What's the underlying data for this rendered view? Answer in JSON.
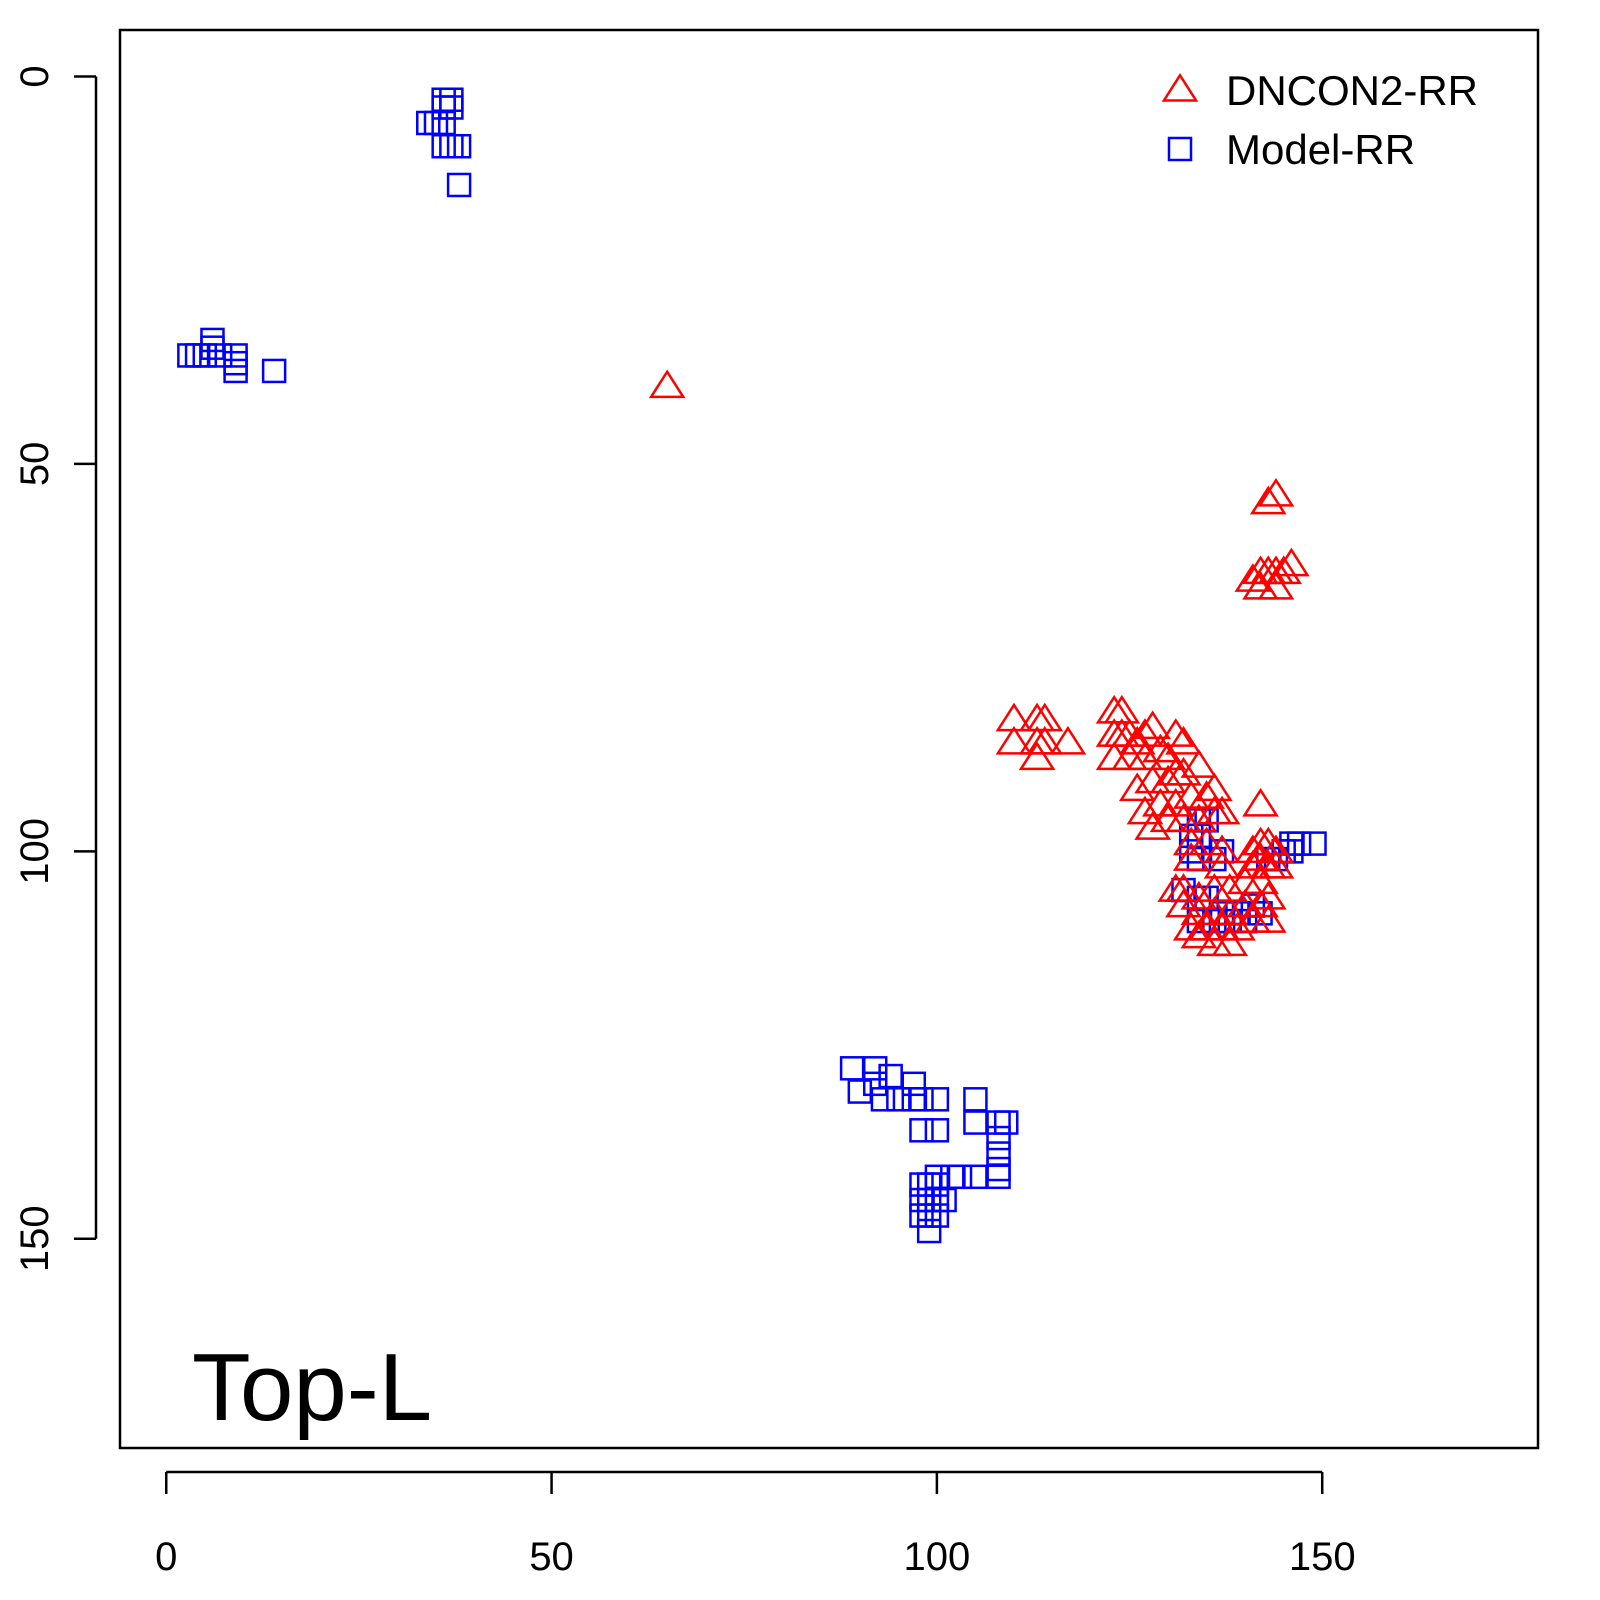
{
  "chart_data": {
    "type": "scatter",
    "panel_label": "Top-L",
    "title": "",
    "xlabel": "",
    "ylabel": "",
    "xlim": [
      -6,
      178
    ],
    "ylim": [
      177,
      -6
    ],
    "y_axis_reversed": true,
    "x_ticks": [
      0,
      50,
      100,
      150
    ],
    "y_ticks": [
      0,
      50,
      100,
      150
    ],
    "grid": false,
    "legend_position": "top-right",
    "series": [
      {
        "name": "DNCON2-RR",
        "marker": "triangle",
        "color": "#ff0000",
        "points": [
          [
            65,
            40
          ],
          [
            143,
            55
          ],
          [
            144,
            54
          ],
          [
            141,
            65
          ],
          [
            142,
            64
          ],
          [
            143,
            64
          ],
          [
            144,
            64
          ],
          [
            145,
            64
          ],
          [
            146,
            63
          ],
          [
            142,
            66
          ],
          [
            144,
            66
          ],
          [
            110,
            83
          ],
          [
            113,
            83
          ],
          [
            114,
            83
          ],
          [
            110,
            86
          ],
          [
            113,
            86
          ],
          [
            114,
            86
          ],
          [
            113,
            88
          ],
          [
            117,
            86
          ],
          [
            123,
            82
          ],
          [
            124,
            82
          ],
          [
            123,
            85
          ],
          [
            124,
            85
          ],
          [
            125,
            85
          ],
          [
            126,
            86
          ],
          [
            127,
            85
          ],
          [
            128,
            84
          ],
          [
            123,
            88
          ],
          [
            125,
            88
          ],
          [
            127,
            88
          ],
          [
            129,
            87
          ],
          [
            131,
            85
          ],
          [
            132,
            86
          ],
          [
            130,
            88
          ],
          [
            126,
            92
          ],
          [
            128,
            91
          ],
          [
            130,
            91
          ],
          [
            131,
            90
          ],
          [
            132,
            90
          ],
          [
            134,
            89
          ],
          [
            127,
            95
          ],
          [
            129,
            94
          ],
          [
            131,
            94
          ],
          [
            133,
            93
          ],
          [
            135,
            93
          ],
          [
            136,
            92
          ],
          [
            128,
            97
          ],
          [
            130,
            96
          ],
          [
            132,
            96
          ],
          [
            134,
            96
          ],
          [
            136,
            95
          ],
          [
            137,
            95
          ],
          [
            133,
            99
          ],
          [
            135,
            99
          ],
          [
            137,
            100
          ],
          [
            142,
            94
          ],
          [
            133,
            101
          ],
          [
            137,
            102
          ],
          [
            131,
            105
          ],
          [
            132,
            105
          ],
          [
            134,
            106
          ],
          [
            136,
            105
          ],
          [
            138,
            105
          ],
          [
            140,
            104
          ],
          [
            142,
            104
          ],
          [
            132,
            107
          ],
          [
            134,
            108
          ],
          [
            136,
            108
          ],
          [
            138,
            108
          ],
          [
            140,
            107
          ],
          [
            142,
            107
          ],
          [
            143,
            106
          ],
          [
            133,
            110
          ],
          [
            135,
            110
          ],
          [
            137,
            110
          ],
          [
            139,
            110
          ],
          [
            141,
            109
          ],
          [
            143,
            109
          ],
          [
            134,
            111
          ],
          [
            136,
            112
          ],
          [
            138,
            112
          ],
          [
            141,
            100
          ],
          [
            142,
            99
          ],
          [
            143,
            99
          ],
          [
            144,
            100
          ],
          [
            141,
            102
          ],
          [
            143,
            102
          ],
          [
            144,
            102
          ],
          [
            142,
            101
          ]
        ]
      },
      {
        "name": "Model-RR",
        "marker": "square",
        "color": "#0000ff",
        "points": [
          [
            36,
            3
          ],
          [
            37,
            3
          ],
          [
            36,
            4
          ],
          [
            37,
            4
          ],
          [
            34,
            6
          ],
          [
            35,
            6
          ],
          [
            36,
            6
          ],
          [
            36,
            9
          ],
          [
            37,
            9
          ],
          [
            38,
            9
          ],
          [
            38,
            14
          ],
          [
            3,
            36
          ],
          [
            4,
            36
          ],
          [
            5,
            36
          ],
          [
            6,
            35
          ],
          [
            6,
            34
          ],
          [
            7,
            36
          ],
          [
            9,
            36
          ],
          [
            9,
            37
          ],
          [
            9,
            38
          ],
          [
            14,
            38
          ],
          [
            134,
            96
          ],
          [
            135,
            96
          ],
          [
            133,
            98
          ],
          [
            134,
            98
          ],
          [
            133,
            100
          ],
          [
            134,
            101
          ],
          [
            136,
            101
          ],
          [
            137,
            100
          ],
          [
            132,
            105
          ],
          [
            134,
            106
          ],
          [
            135,
            106
          ],
          [
            137,
            108
          ],
          [
            139,
            108
          ],
          [
            141,
            107
          ],
          [
            142,
            108
          ],
          [
            134,
            109
          ],
          [
            136,
            109
          ],
          [
            138,
            109
          ],
          [
            140,
            109
          ],
          [
            143,
            101
          ],
          [
            144,
            101
          ],
          [
            145,
            100
          ],
          [
            146,
            99
          ],
          [
            147,
            99
          ],
          [
            149,
            99
          ],
          [
            146,
            100
          ],
          [
            89,
            128
          ],
          [
            90,
            131
          ],
          [
            92,
            128
          ],
          [
            92,
            130
          ],
          [
            93,
            132
          ],
          [
            94,
            129
          ],
          [
            95,
            132
          ],
          [
            97,
            130
          ],
          [
            97,
            132
          ],
          [
            98,
            132
          ],
          [
            100,
            132
          ],
          [
            98,
            136
          ],
          [
            100,
            136
          ],
          [
            105,
            132
          ],
          [
            105,
            135
          ],
          [
            108,
            135
          ],
          [
            109,
            135
          ],
          [
            108,
            137
          ],
          [
            108,
            139
          ],
          [
            108,
            141
          ],
          [
            108,
            142
          ],
          [
            103,
            142
          ],
          [
            105,
            142
          ],
          [
            102,
            142
          ],
          [
            100,
            142
          ],
          [
            98,
            143
          ],
          [
            99,
            143
          ],
          [
            100,
            143
          ],
          [
            98,
            145
          ],
          [
            99,
            145
          ],
          [
            100,
            145
          ],
          [
            101,
            145
          ],
          [
            98,
            147
          ],
          [
            99,
            147
          ],
          [
            100,
            147
          ],
          [
            99,
            149
          ]
        ]
      }
    ]
  }
}
